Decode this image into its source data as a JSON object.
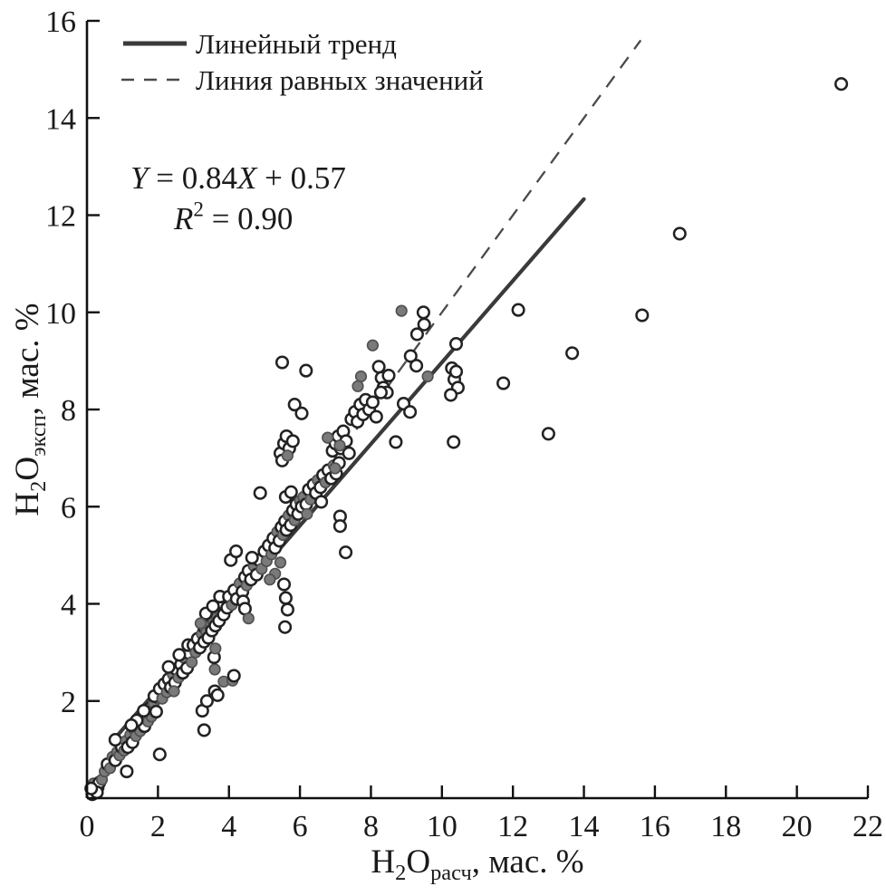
{
  "chart_data": {
    "type": "scatter",
    "title": "",
    "x_axis": {
      "title_text": "H2Oрасч, мас. %",
      "title_parts": [
        {
          "t": "H"
        },
        {
          "t": "2",
          "sub": true
        },
        {
          "t": "O"
        },
        {
          "t": "расч",
          "sub": true
        },
        {
          "t": ", мас. %"
        }
      ],
      "range": [
        0,
        22
      ],
      "ticks": [
        0,
        2,
        4,
        6,
        8,
        10,
        12,
        14,
        16,
        18,
        20,
        22
      ]
    },
    "y_axis": {
      "title_text": "H2Oэксп, мас. %",
      "title_parts": [
        {
          "t": "H"
        },
        {
          "t": "2",
          "sub": true
        },
        {
          "t": "O"
        },
        {
          "t": "эксп",
          "sub": true
        },
        {
          "t": ", мас. %"
        }
      ],
      "range": [
        0,
        16
      ],
      "ticks": [
        2,
        4,
        6,
        8,
        10,
        12,
        14,
        16
      ]
    },
    "legend": {
      "position": "top-left",
      "trend_label": "Линейный тренд",
      "identity_label": "Линия равных значений"
    },
    "trend_line": {
      "slope": 0.84,
      "intercept": 0.57,
      "x_start": 0.85,
      "x_end": 14.0,
      "style": "solid"
    },
    "identity_line": {
      "x_start": 0.15,
      "x_end": 15.6,
      "style": "dashed"
    },
    "equation": {
      "line1": "Y = 0.84X + 0.57",
      "line2": "R² = 0.90",
      "line1_parts": [
        {
          "t": "Y",
          "i": true
        },
        {
          "t": " = 0.84"
        },
        {
          "t": "X",
          "i": true
        },
        {
          "t": " + 0.57"
        }
      ],
      "line2_parts": [
        {
          "t": "R",
          "i": true
        },
        {
          "t": "2",
          "sup": true
        },
        {
          "t": " = 0.90"
        }
      ]
    },
    "colors": {
      "axis": "#111111",
      "text": "#1a1a1a",
      "open_fill": "#ffffff",
      "open_stroke": "#222222",
      "gray_fill": "#7a7a7a",
      "gray_stroke": "#4f4f4f",
      "trend": "#3a3a3a",
      "identity": "#4a4a4a"
    },
    "series": [
      {
        "name": "experimental-open",
        "marker": "open-circle"
      },
      {
        "name": "experimental-gray",
        "marker": "filled-gray-circle"
      }
    ],
    "points": [
      [
        0.15,
        0.08,
        0
      ],
      [
        0.22,
        0.18,
        1
      ],
      [
        0.3,
        0.22,
        0
      ],
      [
        0.18,
        0.3,
        1
      ],
      [
        0.35,
        0.32,
        0
      ],
      [
        0.28,
        0.12,
        0
      ],
      [
        0.42,
        0.38,
        1
      ],
      [
        0.12,
        0.2,
        0
      ],
      [
        0.5,
        0.55,
        1
      ],
      [
        0.58,
        0.7,
        0
      ],
      [
        0.65,
        0.62,
        1
      ],
      [
        0.72,
        0.85,
        1
      ],
      [
        0.8,
        0.78,
        0
      ],
      [
        0.85,
        0.95,
        1
      ],
      [
        0.92,
        0.88,
        1
      ],
      [
        0.98,
        1.05,
        0
      ],
      [
        1.05,
        0.98,
        1
      ],
      [
        0.8,
        1.2,
        0
      ],
      [
        1.12,
        0.55,
        0
      ],
      [
        1.1,
        1.18,
        1
      ],
      [
        1.15,
        1.05,
        0
      ],
      [
        1.22,
        1.3,
        1
      ],
      [
        1.28,
        1.15,
        0
      ],
      [
        1.32,
        1.42,
        1
      ],
      [
        1.38,
        1.28,
        1
      ],
      [
        1.45,
        1.52,
        0
      ],
      [
        1.5,
        1.38,
        1
      ],
      [
        1.55,
        1.62,
        1
      ],
      [
        1.62,
        1.48,
        0
      ],
      [
        1.68,
        1.72,
        1
      ],
      [
        1.72,
        1.58,
        1
      ],
      [
        1.78,
        1.85,
        0
      ],
      [
        1.82,
        1.68,
        1
      ],
      [
        1.88,
        1.95,
        1
      ],
      [
        1.95,
        1.78,
        0
      ],
      [
        2.0,
        2.05,
        1
      ],
      [
        1.4,
        1.6,
        0
      ],
      [
        1.6,
        1.8,
        0
      ],
      [
        1.25,
        1.5,
        0
      ],
      [
        1.9,
        2.1,
        0
      ],
      [
        2.05,
        0.9,
        0
      ],
      [
        2.05,
        2.25,
        0
      ],
      [
        2.12,
        2.05,
        1
      ],
      [
        2.18,
        2.35,
        0
      ],
      [
        2.25,
        2.18,
        1
      ],
      [
        2.3,
        2.45,
        0
      ],
      [
        2.36,
        2.28,
        0
      ],
      [
        2.42,
        2.55,
        1
      ],
      [
        2.48,
        2.38,
        0
      ],
      [
        2.52,
        2.65,
        0
      ],
      [
        2.58,
        2.48,
        1
      ],
      [
        2.65,
        2.75,
        0
      ],
      [
        2.7,
        2.58,
        0
      ],
      [
        2.75,
        2.88,
        1
      ],
      [
        2.82,
        2.68,
        0
      ],
      [
        2.88,
        2.98,
        0
      ],
      [
        2.95,
        2.8,
        1
      ],
      [
        2.3,
        2.7,
        0
      ],
      [
        2.6,
        2.95,
        0
      ],
      [
        2.45,
        2.2,
        1
      ],
      [
        2.85,
        3.15,
        0
      ],
      [
        3.0,
        3.15,
        0
      ],
      [
        3.06,
        3.0,
        1
      ],
      [
        3.12,
        3.28,
        0
      ],
      [
        3.18,
        3.1,
        0
      ],
      [
        3.24,
        3.38,
        1
      ],
      [
        3.3,
        3.22,
        0
      ],
      [
        3.3,
        3.52,
        0
      ],
      [
        3.36,
        3.42,
        1
      ],
      [
        3.4,
        3.65,
        0
      ],
      [
        3.42,
        3.3,
        0
      ],
      [
        3.46,
        3.55,
        1
      ],
      [
        3.5,
        3.75,
        0
      ],
      [
        3.52,
        3.45,
        0
      ],
      [
        3.56,
        3.62,
        1
      ],
      [
        3.6,
        3.85,
        0
      ],
      [
        3.62,
        3.55,
        0
      ],
      [
        3.66,
        3.72,
        1
      ],
      [
        3.7,
        3.95,
        0
      ],
      [
        3.72,
        3.65,
        0
      ],
      [
        3.76,
        3.85,
        1
      ],
      [
        3.8,
        4.02,
        0
      ],
      [
        3.85,
        3.78,
        0
      ],
      [
        3.9,
        4.1,
        1
      ],
      [
        3.95,
        3.92,
        0
      ],
      [
        3.35,
        3.8,
        0
      ],
      [
        3.55,
        3.95,
        0
      ],
      [
        3.2,
        3.6,
        1
      ],
      [
        3.75,
        4.15,
        0
      ],
      [
        3.3,
        1.4,
        0
      ],
      [
        3.25,
        1.8,
        0
      ],
      [
        3.38,
        2.0,
        0
      ],
      [
        3.6,
        2.2,
        0
      ],
      [
        3.68,
        2.12,
        0
      ],
      [
        3.6,
        2.65,
        1
      ],
      [
        3.85,
        2.4,
        1
      ],
      [
        4.1,
        2.42,
        1
      ],
      [
        4.14,
        2.52,
        0
      ],
      [
        3.58,
        2.9,
        0
      ],
      [
        3.62,
        3.08,
        1
      ],
      [
        4.0,
        4.15,
        0
      ],
      [
        4.08,
        3.98,
        1
      ],
      [
        4.15,
        4.28,
        0
      ],
      [
        4.22,
        4.1,
        0
      ],
      [
        4.3,
        4.42,
        1
      ],
      [
        4.38,
        4.25,
        0
      ],
      [
        4.45,
        4.55,
        0
      ],
      [
        4.5,
        4.38,
        1
      ],
      [
        4.55,
        4.68,
        0
      ],
      [
        4.62,
        4.5,
        0
      ],
      [
        4.7,
        4.78,
        1
      ],
      [
        4.78,
        4.6,
        0
      ],
      [
        4.85,
        4.9,
        0
      ],
      [
        4.92,
        4.72,
        1
      ],
      [
        4.4,
        4.05,
        0
      ],
      [
        4.65,
        4.95,
        0
      ],
      [
        4.45,
        3.9,
        0
      ],
      [
        4.55,
        3.7,
        1
      ],
      [
        4.05,
        4.9,
        0
      ],
      [
        4.2,
        5.08,
        0
      ],
      [
        4.88,
        6.28,
        0
      ],
      [
        5.0,
        5.08,
        0
      ],
      [
        5.06,
        4.88,
        1
      ],
      [
        5.12,
        5.2,
        0
      ],
      [
        5.2,
        5.02,
        1
      ],
      [
        5.25,
        5.35,
        0
      ],
      [
        5.3,
        5.15,
        0
      ],
      [
        5.36,
        5.48,
        1
      ],
      [
        5.42,
        5.3,
        0
      ],
      [
        5.48,
        5.58,
        0
      ],
      [
        5.52,
        5.42,
        1
      ],
      [
        5.58,
        5.7,
        0
      ],
      [
        5.62,
        5.52,
        0
      ],
      [
        5.68,
        5.82,
        1
      ],
      [
        5.74,
        5.62,
        0
      ],
      [
        5.8,
        5.92,
        0
      ],
      [
        5.85,
        5.72,
        1
      ],
      [
        5.9,
        6.05,
        0
      ],
      [
        5.95,
        5.85,
        0
      ],
      [
        6.0,
        6.12,
        1
      ],
      [
        5.3,
        4.62,
        1
      ],
      [
        5.45,
        4.85,
        1
      ],
      [
        5.15,
        4.5,
        1
      ],
      [
        5.6,
        6.2,
        0
      ],
      [
        5.75,
        6.3,
        0
      ],
      [
        5.55,
        4.4,
        0
      ],
      [
        5.6,
        4.12,
        0
      ],
      [
        5.65,
        3.88,
        0
      ],
      [
        5.58,
        3.52,
        0
      ],
      [
        5.45,
        7.1,
        0
      ],
      [
        5.55,
        7.3,
        0
      ],
      [
        5.62,
        7.45,
        0
      ],
      [
        5.7,
        7.2,
        0
      ],
      [
        5.5,
        6.95,
        0
      ],
      [
        5.8,
        7.35,
        0
      ],
      [
        5.65,
        7.05,
        1
      ],
      [
        5.5,
        8.97,
        0
      ],
      [
        6.17,
        8.8,
        0
      ],
      [
        5.85,
        8.1,
        0
      ],
      [
        6.05,
        7.92,
        0
      ],
      [
        6.05,
        6.0,
        0
      ],
      [
        6.1,
        6.2,
        1
      ],
      [
        6.18,
        6.05,
        0
      ],
      [
        6.25,
        6.35,
        0
      ],
      [
        6.3,
        6.15,
        1
      ],
      [
        6.38,
        6.45,
        0
      ],
      [
        6.45,
        6.28,
        0
      ],
      [
        6.5,
        6.55,
        1
      ],
      [
        6.58,
        6.4,
        0
      ],
      [
        6.65,
        6.65,
        0
      ],
      [
        6.72,
        6.5,
        1
      ],
      [
        6.8,
        6.75,
        0
      ],
      [
        6.88,
        6.58,
        0
      ],
      [
        6.95,
        6.85,
        1
      ],
      [
        7.02,
        6.68,
        0
      ],
      [
        7.1,
        6.9,
        0
      ],
      [
        6.2,
        5.85,
        1
      ],
      [
        6.6,
        6.1,
        0
      ],
      [
        6.99,
        6.79,
        1
      ],
      [
        7.13,
        5.8,
        0
      ],
      [
        7.13,
        5.6,
        0
      ],
      [
        7.29,
        5.06,
        0
      ],
      [
        6.92,
        7.15,
        0
      ],
      [
        7.0,
        7.3,
        0
      ],
      [
        7.08,
        7.45,
        0
      ],
      [
        7.15,
        7.2,
        0
      ],
      [
        7.22,
        7.55,
        0
      ],
      [
        7.3,
        7.35,
        0
      ],
      [
        7.38,
        7.1,
        0
      ],
      [
        6.78,
        7.42,
        1
      ],
      [
        7.12,
        7.26,
        1
      ],
      [
        7.45,
        7.8,
        0
      ],
      [
        7.55,
        7.95,
        0
      ],
      [
        7.62,
        7.75,
        0
      ],
      [
        7.7,
        8.1,
        0
      ],
      [
        7.78,
        7.9,
        0
      ],
      [
        7.85,
        8.2,
        0
      ],
      [
        7.95,
        8.0,
        0
      ],
      [
        8.05,
        8.15,
        0
      ],
      [
        8.15,
        7.85,
        0
      ],
      [
        7.72,
        8.68,
        1
      ],
      [
        7.63,
        8.48,
        1
      ],
      [
        8.05,
        9.32,
        1
      ],
      [
        8.86,
        10.03,
        1
      ],
      [
        8.22,
        8.88,
        0
      ],
      [
        8.3,
        8.65,
        0
      ],
      [
        8.35,
        8.45,
        0
      ],
      [
        8.45,
        8.35,
        0
      ],
      [
        8.28,
        8.35,
        0
      ],
      [
        8.5,
        8.7,
        0
      ],
      [
        9.12,
        9.1,
        0
      ],
      [
        9.28,
        8.9,
        0
      ],
      [
        9.3,
        9.55,
        0
      ],
      [
        9.48,
        10.0,
        0
      ],
      [
        9.5,
        9.75,
        0
      ],
      [
        9.6,
        8.68,
        1
      ],
      [
        10.4,
        9.35,
        0
      ],
      [
        8.92,
        8.12,
        0
      ],
      [
        9.1,
        7.95,
        0
      ],
      [
        10.28,
        8.85,
        0
      ],
      [
        10.35,
        8.62,
        0
      ],
      [
        10.45,
        8.45,
        0
      ],
      [
        10.25,
        8.3,
        0
      ],
      [
        10.4,
        8.78,
        0
      ],
      [
        10.33,
        7.33,
        0
      ],
      [
        8.7,
        7.33,
        0
      ],
      [
        11.73,
        8.54,
        0
      ],
      [
        12.15,
        10.05,
        0
      ],
      [
        13.0,
        7.5,
        0
      ],
      [
        13.67,
        9.16,
        0
      ],
      [
        15.64,
        9.94,
        0
      ],
      [
        16.7,
        11.62,
        0
      ],
      [
        21.25,
        14.7,
        0
      ]
    ]
  }
}
